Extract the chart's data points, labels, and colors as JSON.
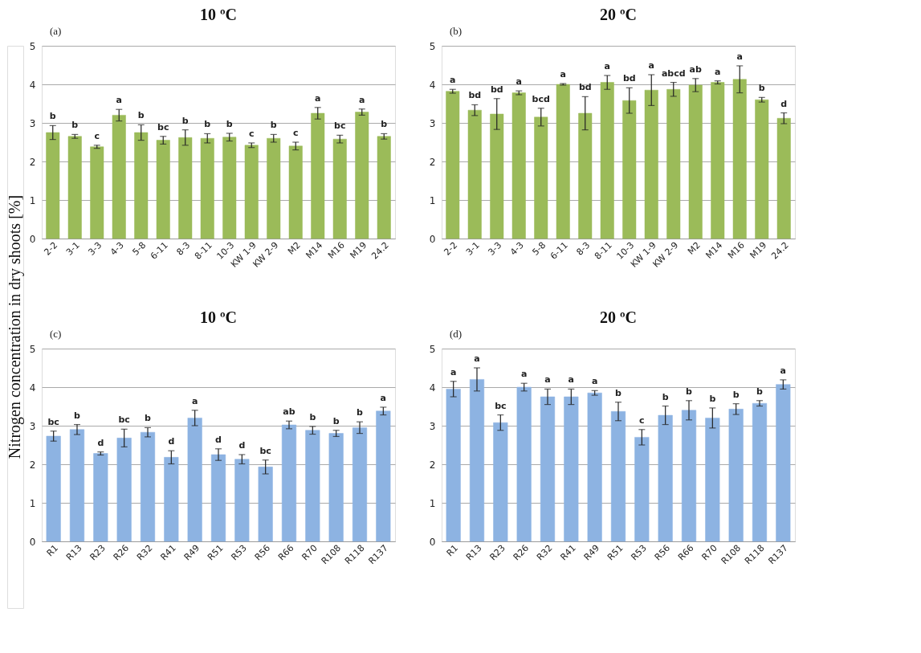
{
  "chart_data": [
    {
      "type": "bar",
      "title": "10 ºC",
      "ylabel": "Nitrogen concentration in dry shoots [%]",
      "categories": [
        "2-2",
        "3-1",
        "3-3",
        "4-3",
        "5-8",
        "6-11",
        "8-3",
        "8-11",
        "10-3",
        "KW 1-9",
        "KW 2-9",
        "M2",
        "M14",
        "M16",
        "M19",
        "24.2"
      ],
      "series": [
        {
          "color": "#9bbb59",
          "values": [
            2.75,
            2.65,
            2.38,
            3.2,
            2.75,
            2.55,
            2.62,
            2.6,
            2.63,
            2.42,
            2.6,
            2.4,
            3.25,
            2.58,
            3.28,
            2.65
          ],
          "errors": [
            0.18,
            0.05,
            0.04,
            0.15,
            0.2,
            0.1,
            0.2,
            0.12,
            0.1,
            0.06,
            0.1,
            0.1,
            0.15,
            0.1,
            0.08,
            0.07
          ]
        }
      ],
      "ylim": [
        0,
        5
      ],
      "yticks": [
        0,
        1,
        2,
        3,
        4,
        5
      ],
      "grid": "y",
      "annotations": [
        "(a)",
        {
          "text": "b",
          "x": "2-2",
          "y": 2.75
        },
        {
          "text": "b",
          "x": "3-1",
          "y": 2.65
        },
        {
          "text": "c",
          "x": "3-3",
          "y": 2.38
        },
        {
          "text": "a",
          "x": "4-3",
          "y": 3.2
        },
        {
          "text": "b",
          "x": "5-8",
          "y": 2.75
        },
        {
          "text": "bc",
          "x": "6-11",
          "y": 2.55
        },
        {
          "text": "b",
          "x": "8-3",
          "y": 2.62
        },
        {
          "text": "b",
          "x": "8-11",
          "y": 2.6
        },
        {
          "text": "b",
          "x": "10-3",
          "y": 2.63
        },
        {
          "text": "c",
          "x": "KW 1-9",
          "y": 2.42
        },
        {
          "text": "b",
          "x": "KW 2-9",
          "y": 2.6
        },
        {
          "text": "c",
          "x": "M2",
          "y": 2.4
        },
        {
          "text": "a",
          "x": "M14",
          "y": 3.25
        },
        {
          "text": "bc",
          "x": "M16",
          "y": 2.58
        },
        {
          "text": "a",
          "x": "M19",
          "y": 3.28
        },
        {
          "text": "b",
          "x": "24.2",
          "y": 2.65
        }
      ]
    },
    {
      "type": "bar",
      "title": "20 ºC",
      "categories": [
        "2-2",
        "3-1",
        "3-3",
        "4-3",
        "5-8",
        "6-11",
        "8-3",
        "8-11",
        "10-3",
        "KW 1-9",
        "KW 2-9",
        "M2",
        "M14",
        "M16",
        "M19",
        "24.2"
      ],
      "series": [
        {
          "color": "#9bbb59",
          "values": [
            3.82,
            3.33,
            3.23,
            3.78,
            3.15,
            4.0,
            3.25,
            4.05,
            3.58,
            3.85,
            3.87,
            3.98,
            4.05,
            4.13,
            3.6,
            3.12
          ],
          "errors": [
            0.05,
            0.14,
            0.4,
            0.05,
            0.23,
            0.02,
            0.43,
            0.18,
            0.33,
            0.4,
            0.18,
            0.17,
            0.04,
            0.35,
            0.06,
            0.14
          ]
        }
      ],
      "ylim": [
        0,
        5
      ],
      "yticks": [
        0,
        1,
        2,
        3,
        4,
        5
      ],
      "grid": "y",
      "annotations": [
        "(b)",
        {
          "text": "a",
          "x": "2-2",
          "y": 3.82
        },
        {
          "text": "bd",
          "x": "3-1",
          "y": 3.33
        },
        {
          "text": "bd",
          "x": "3-3",
          "y": 3.23
        },
        {
          "text": "a",
          "x": "4-3",
          "y": 3.78
        },
        {
          "text": "bcd",
          "x": "5-8",
          "y": 3.15
        },
        {
          "text": "a",
          "x": "6-11",
          "y": 4.0
        },
        {
          "text": "bd",
          "x": "8-3",
          "y": 3.25
        },
        {
          "text": "a",
          "x": "8-11",
          "y": 4.05
        },
        {
          "text": "bd",
          "x": "10-3",
          "y": 3.58
        },
        {
          "text": "a",
          "x": "KW 1-9",
          "y": 3.85
        },
        {
          "text": "abcd",
          "x": "KW 2-9",
          "y": 3.87
        },
        {
          "text": "ab",
          "x": "M2",
          "y": 3.98
        },
        {
          "text": "a",
          "x": "M14",
          "y": 4.05
        },
        {
          "text": "a",
          "x": "M16",
          "y": 4.13
        },
        {
          "text": "b",
          "x": "M19",
          "y": 3.6
        },
        {
          "text": "d",
          "x": "24.2",
          "y": 3.12
        }
      ]
    },
    {
      "type": "bar",
      "title": "10 ºC",
      "categories": [
        "R1",
        "R13",
        "R23",
        "R26",
        "R32",
        "R41",
        "R49",
        "R51",
        "R53",
        "R56",
        "R66",
        "R70",
        "R108",
        "R118",
        "R137"
      ],
      "series": [
        {
          "color": "#8db3e2",
          "values": [
            2.73,
            2.9,
            2.28,
            2.68,
            2.83,
            2.18,
            3.2,
            2.25,
            2.13,
            1.93,
            3.02,
            2.88,
            2.8,
            2.95,
            3.38
          ],
          "errors": [
            0.13,
            0.13,
            0.04,
            0.23,
            0.12,
            0.17,
            0.2,
            0.15,
            0.12,
            0.18,
            0.1,
            0.1,
            0.08,
            0.15,
            0.1
          ]
        }
      ],
      "ylim": [
        0,
        5
      ],
      "yticks": [
        0,
        1,
        2,
        3,
        4,
        5
      ],
      "grid": "y",
      "annotations": [
        "(c)",
        {
          "text": "bc",
          "x": "R1",
          "y": 2.73
        },
        {
          "text": "b",
          "x": "R13",
          "y": 2.9
        },
        {
          "text": "d",
          "x": "R23",
          "y": 2.28
        },
        {
          "text": "bc",
          "x": "R26",
          "y": 2.68
        },
        {
          "text": "b",
          "x": "R32",
          "y": 2.83
        },
        {
          "text": "d",
          "x": "R41",
          "y": 2.18
        },
        {
          "text": "a",
          "x": "R49",
          "y": 3.2
        },
        {
          "text": "d",
          "x": "R51",
          "y": 2.25
        },
        {
          "text": "d",
          "x": "R53",
          "y": 2.13
        },
        {
          "text": "bc",
          "x": "R56",
          "y": 1.93
        },
        {
          "text": "ab",
          "x": "R66",
          "y": 3.02
        },
        {
          "text": "b",
          "x": "R70",
          "y": 2.88
        },
        {
          "text": "b",
          "x": "R108",
          "y": 2.8
        },
        {
          "text": "b",
          "x": "R118",
          "y": 2.95
        },
        {
          "text": "a",
          "x": "R137",
          "y": 3.38
        }
      ]
    },
    {
      "type": "bar",
      "title": "20 ºC",
      "categories": [
        "R1",
        "R13",
        "R23",
        "R26",
        "R32",
        "R41",
        "R49",
        "R51",
        "R53",
        "R56",
        "R66",
        "R70",
        "R108",
        "R118",
        "R137"
      ],
      "series": [
        {
          "color": "#8db3e2",
          "values": [
            3.95,
            4.2,
            3.08,
            4.0,
            3.75,
            3.75,
            3.85,
            3.37,
            2.7,
            3.27,
            3.4,
            3.2,
            3.43,
            3.58,
            4.07
          ],
          "errors": [
            0.2,
            0.3,
            0.2,
            0.1,
            0.2,
            0.2,
            0.06,
            0.24,
            0.2,
            0.24,
            0.25,
            0.26,
            0.14,
            0.07,
            0.12
          ]
        }
      ],
      "ylim": [
        0,
        5
      ],
      "yticks": [
        0,
        1,
        2,
        3,
        4,
        5
      ],
      "grid": "y",
      "annotations": [
        "(d)",
        {
          "text": "a",
          "x": "R1",
          "y": 3.95
        },
        {
          "text": "a",
          "x": "R13",
          "y": 4.2
        },
        {
          "text": "bc",
          "x": "R23",
          "y": 3.08
        },
        {
          "text": "a",
          "x": "R26",
          "y": 4.0
        },
        {
          "text": "a",
          "x": "R32",
          "y": 3.75
        },
        {
          "text": "a",
          "x": "R41",
          "y": 3.75
        },
        {
          "text": "a",
          "x": "R49",
          "y": 3.85
        },
        {
          "text": "b",
          "x": "R51",
          "y": 3.37
        },
        {
          "text": "c",
          "x": "R53",
          "y": 2.7
        },
        {
          "text": "b",
          "x": "R56",
          "y": 3.27
        },
        {
          "text": "b",
          "x": "R66",
          "y": 3.4
        },
        {
          "text": "b",
          "x": "R70",
          "y": 3.2
        },
        {
          "text": "b",
          "x": "R108",
          "y": 3.43
        },
        {
          "text": "b",
          "x": "R118",
          "y": 3.58
        },
        {
          "text": "a",
          "x": "R137",
          "y": 4.07
        }
      ]
    }
  ]
}
